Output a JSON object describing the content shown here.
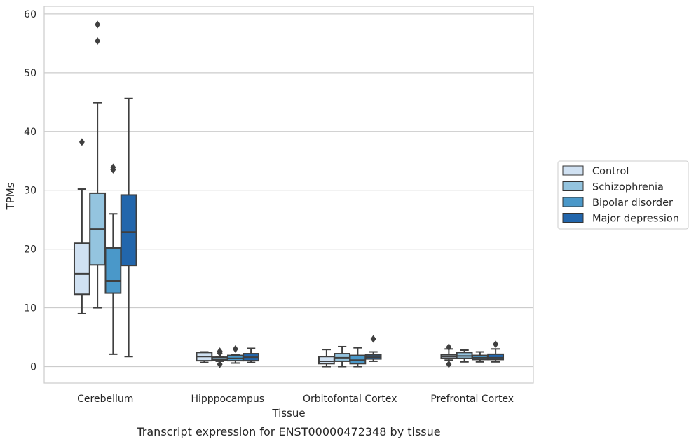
{
  "chart_data": {
    "type": "box",
    "title": "Transcript expression for ENST00000472348 by tissue",
    "xlabel": "Tissue",
    "ylabel": "TPMs",
    "ylim": [
      -2.8,
      61.3
    ],
    "yticks": [
      0,
      10,
      20,
      30,
      40,
      50,
      60
    ],
    "grid": "horizontal",
    "legend_position": "right",
    "categories": [
      "Cerebellum",
      "Hipppocampus",
      "Orbitofontal Cortex",
      "Prefrontal Cortex"
    ],
    "series": [
      {
        "name": "Control",
        "color": "#d0e1f2",
        "boxes": [
          {
            "whislo": 9.0,
            "q1": 12.3,
            "med": 15.8,
            "q3": 21.0,
            "whishi": 30.2,
            "fliers": [
              38.2
            ]
          },
          {
            "whislo": 0.7,
            "q1": 1.0,
            "med": 1.7,
            "q3": 2.4,
            "whishi": 2.5,
            "fliers": []
          },
          {
            "whislo": 0.0,
            "q1": 0.5,
            "med": 0.9,
            "q3": 1.7,
            "whishi": 2.9,
            "fliers": []
          },
          {
            "whislo": 1.1,
            "q1": 1.4,
            "med": 1.7,
            "q3": 2.0,
            "whishi": 3.0,
            "fliers": [
              0.4,
              3.3
            ]
          }
        ]
      },
      {
        "name": "Schizophrenia",
        "color": "#94c4df",
        "boxes": [
          {
            "whislo": 10.0,
            "q1": 17.3,
            "med": 23.4,
            "q3": 29.5,
            "whishi": 44.9,
            "fliers": [
              55.4,
              58.2
            ]
          },
          {
            "whislo": 0.9,
            "q1": 1.1,
            "med": 1.3,
            "q3": 1.6,
            "whishi": 1.7,
            "fliers": [
              0.4,
              2.3,
              2.6
            ]
          },
          {
            "whislo": 0.0,
            "q1": 0.9,
            "med": 1.5,
            "q3": 2.2,
            "whishi": 3.4,
            "fliers": []
          },
          {
            "whislo": 0.8,
            "q1": 1.4,
            "med": 1.8,
            "q3": 2.4,
            "whishi": 2.8,
            "fliers": []
          }
        ]
      },
      {
        "name": "Bipolar disorder",
        "color": "#4a98c9",
        "boxes": [
          {
            "whislo": 2.1,
            "q1": 12.5,
            "med": 14.6,
            "q3": 20.2,
            "whishi": 26.0,
            "fliers": [
              33.5,
              33.9
            ]
          },
          {
            "whislo": 0.6,
            "q1": 1.0,
            "med": 1.4,
            "q3": 1.9,
            "whishi": 2.0,
            "fliers": [
              3.0
            ]
          },
          {
            "whislo": 0.0,
            "q1": 0.5,
            "med": 1.1,
            "q3": 1.9,
            "whishi": 3.2,
            "fliers": []
          },
          {
            "whislo": 0.8,
            "q1": 1.2,
            "med": 1.5,
            "q3": 1.9,
            "whishi": 2.5,
            "fliers": []
          }
        ]
      },
      {
        "name": "Major depression",
        "color": "#2266ac",
        "boxes": [
          {
            "whislo": 1.7,
            "q1": 17.2,
            "med": 22.9,
            "q3": 29.2,
            "whishi": 45.6,
            "fliers": []
          },
          {
            "whislo": 0.7,
            "q1": 1.0,
            "med": 1.6,
            "q3": 2.2,
            "whishi": 3.1,
            "fliers": []
          },
          {
            "whislo": 0.9,
            "q1": 1.3,
            "med": 1.6,
            "q3": 2.0,
            "whishi": 2.5,
            "fliers": [
              4.7
            ]
          },
          {
            "whislo": 0.8,
            "q1": 1.2,
            "med": 1.5,
            "q3": 2.1,
            "whishi": 3.0,
            "fliers": [
              3.8
            ]
          }
        ]
      }
    ]
  }
}
